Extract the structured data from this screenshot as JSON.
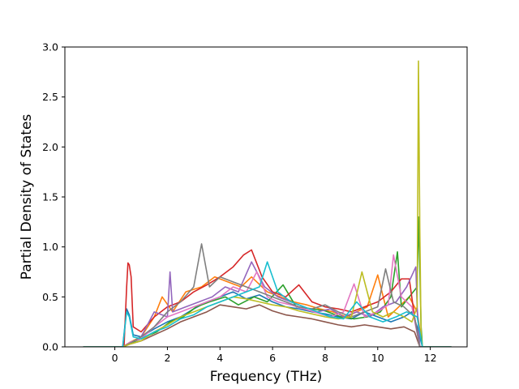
{
  "chart_data": {
    "type": "line",
    "title": "",
    "xlabel": "Frequency (THz)",
    "ylabel": "Partial Density of States",
    "xlim": [
      -1.9,
      13.4
    ],
    "ylim": [
      0.0,
      3.0
    ],
    "xticks": [
      0,
      2,
      4,
      6,
      8,
      10,
      12
    ],
    "yticks": [
      0.0,
      0.5,
      1.0,
      1.5,
      2.0,
      2.5,
      3.0
    ],
    "xtick_labels": [
      "0",
      "2",
      "4",
      "6",
      "8",
      "10",
      "12"
    ],
    "ytick_labels": [
      "0.0",
      "0.5",
      "1.0",
      "1.5",
      "2.0",
      "2.5",
      "3.0"
    ],
    "grid": false,
    "legend": "none",
    "colors": [
      "#1f77b4",
      "#ff7f0e",
      "#2ca02c",
      "#d62728",
      "#9467bd",
      "#8c564b",
      "#e377c2",
      "#7f7f7f",
      "#bcbd22",
      "#17becf"
    ],
    "series": [
      {
        "color": "#1f77b4",
        "x": [
          -1.2,
          0.3,
          0.45,
          0.55,
          0.7,
          1.0,
          1.5,
          2.0,
          2.5,
          3.0,
          3.5,
          4.0,
          4.5,
          5.0,
          5.5,
          6.0,
          6.5,
          7.0,
          7.5,
          8.0,
          8.5,
          9.0,
          9.5,
          10.0,
          10.5,
          11.0,
          11.3,
          11.5,
          11.6,
          11.7,
          12.8
        ],
        "y": [
          0.0,
          0.0,
          0.38,
          0.32,
          0.12,
          0.1,
          0.18,
          0.25,
          0.3,
          0.38,
          0.45,
          0.5,
          0.55,
          0.48,
          0.52,
          0.45,
          0.4,
          0.38,
          0.35,
          0.33,
          0.3,
          0.28,
          0.35,
          0.3,
          0.25,
          0.3,
          0.35,
          0.2,
          0.1,
          0.0,
          0.0
        ]
      },
      {
        "color": "#ff7f0e",
        "x": [
          -1.2,
          0.3,
          0.6,
          1.0,
          1.5,
          1.8,
          2.2,
          2.7,
          3.3,
          3.8,
          4.3,
          4.8,
          5.2,
          5.8,
          6.3,
          6.8,
          7.3,
          7.8,
          8.3,
          8.8,
          9.2,
          9.6,
          10.0,
          10.4,
          10.8,
          11.2,
          11.5,
          11.7,
          12.8
        ],
        "y": [
          0.0,
          0.0,
          0.05,
          0.1,
          0.3,
          0.5,
          0.35,
          0.55,
          0.6,
          0.7,
          0.65,
          0.6,
          0.7,
          0.55,
          0.5,
          0.45,
          0.42,
          0.38,
          0.35,
          0.3,
          0.35,
          0.4,
          0.72,
          0.3,
          0.4,
          0.5,
          0.35,
          0.0,
          0.0
        ]
      },
      {
        "color": "#2ca02c",
        "x": [
          -1.2,
          0.3,
          0.6,
          1.0,
          1.6,
          2.1,
          2.6,
          3.1,
          3.6,
          4.2,
          4.7,
          5.3,
          5.8,
          6.4,
          6.9,
          7.5,
          8.0,
          8.6,
          9.1,
          9.6,
          10.1,
          10.5,
          10.75,
          10.9,
          11.2,
          11.5,
          11.55,
          11.6,
          11.65,
          11.7,
          12.8
        ],
        "y": [
          0.0,
          0.0,
          0.04,
          0.08,
          0.15,
          0.25,
          0.3,
          0.4,
          0.45,
          0.5,
          0.42,
          0.5,
          0.45,
          0.62,
          0.4,
          0.38,
          0.36,
          0.3,
          0.28,
          0.3,
          0.35,
          0.5,
          0.95,
          0.4,
          0.5,
          0.6,
          1.3,
          0.8,
          0.2,
          0.0,
          0.0
        ]
      },
      {
        "color": "#d62728",
        "x": [
          -1.2,
          0.35,
          0.45,
          0.5,
          0.55,
          0.62,
          0.7,
          1.0,
          1.5,
          2.0,
          2.5,
          3.0,
          3.5,
          4.0,
          4.5,
          4.9,
          5.2,
          5.6,
          6.0,
          6.5,
          7.0,
          7.5,
          8.0,
          8.5,
          9.0,
          9.5,
          10.0,
          10.5,
          10.9,
          11.2,
          11.4,
          11.6,
          12.8
        ],
        "y": [
          0.0,
          0.0,
          0.6,
          0.84,
          0.82,
          0.7,
          0.2,
          0.15,
          0.3,
          0.4,
          0.45,
          0.55,
          0.62,
          0.7,
          0.8,
          0.92,
          0.97,
          0.7,
          0.55,
          0.5,
          0.62,
          0.45,
          0.4,
          0.38,
          0.35,
          0.4,
          0.45,
          0.55,
          0.68,
          0.68,
          0.3,
          0.0,
          0.0
        ]
      },
      {
        "color": "#9467bd",
        "x": [
          -1.2,
          0.3,
          0.6,
          1.0,
          1.5,
          2.0,
          2.1,
          2.2,
          2.7,
          3.2,
          3.7,
          4.2,
          4.7,
          5.2,
          5.7,
          6.2,
          6.7,
          7.2,
          7.7,
          8.2,
          8.7,
          9.2,
          9.7,
          10.2,
          10.7,
          11.1,
          11.45,
          11.5,
          11.6,
          12.8
        ],
        "y": [
          0.0,
          0.0,
          0.04,
          0.1,
          0.35,
          0.3,
          0.75,
          0.35,
          0.4,
          0.45,
          0.5,
          0.6,
          0.55,
          0.85,
          0.6,
          0.5,
          0.45,
          0.4,
          0.35,
          0.38,
          0.3,
          0.35,
          0.3,
          0.4,
          0.45,
          0.6,
          0.8,
          0.4,
          0.0,
          0.0
        ]
      },
      {
        "color": "#8c564b",
        "x": [
          -1.2,
          0.3,
          0.6,
          1.0,
          1.5,
          2.0,
          2.5,
          3.0,
          3.5,
          4.0,
          4.5,
          5.0,
          5.5,
          6.0,
          6.5,
          7.0,
          7.5,
          8.0,
          8.5,
          9.0,
          9.5,
          10.0,
          10.5,
          11.0,
          11.4,
          11.6,
          12.8
        ],
        "y": [
          0.0,
          0.0,
          0.03,
          0.06,
          0.12,
          0.18,
          0.25,
          0.3,
          0.35,
          0.42,
          0.4,
          0.38,
          0.42,
          0.36,
          0.32,
          0.3,
          0.28,
          0.25,
          0.22,
          0.2,
          0.22,
          0.2,
          0.18,
          0.2,
          0.15,
          0.0,
          0.0
        ]
      },
      {
        "color": "#e377c2",
        "x": [
          -1.2,
          0.3,
          0.6,
          1.0,
          1.5,
          2.0,
          2.5,
          3.0,
          3.5,
          4.0,
          4.5,
          5.0,
          5.4,
          5.8,
          6.2,
          6.7,
          7.2,
          7.7,
          8.2,
          8.7,
          9.1,
          9.5,
          10.0,
          10.4,
          10.6,
          10.9,
          11.3,
          11.6,
          12.8
        ],
        "y": [
          0.0,
          0.0,
          0.05,
          0.08,
          0.2,
          0.3,
          0.35,
          0.4,
          0.45,
          0.5,
          0.6,
          0.55,
          0.75,
          0.5,
          0.45,
          0.42,
          0.38,
          0.34,
          0.3,
          0.35,
          0.63,
          0.3,
          0.35,
          0.42,
          0.92,
          0.5,
          0.4,
          0.0,
          0.0
        ]
      },
      {
        "color": "#7f7f7f",
        "x": [
          -1.2,
          0.3,
          0.6,
          1.0,
          1.5,
          2.0,
          2.5,
          3.0,
          3.3,
          3.6,
          4.0,
          4.5,
          5.0,
          5.5,
          6.0,
          6.5,
          7.0,
          7.5,
          8.0,
          8.5,
          9.0,
          9.5,
          10.0,
          10.3,
          10.6,
          11.0,
          11.4,
          11.6,
          12.8
        ],
        "y": [
          0.0,
          0.0,
          0.04,
          0.1,
          0.2,
          0.35,
          0.45,
          0.6,
          1.03,
          0.6,
          0.7,
          0.65,
          0.6,
          0.55,
          0.5,
          0.45,
          0.4,
          0.38,
          0.42,
          0.35,
          0.3,
          0.35,
          0.4,
          0.78,
          0.45,
          0.4,
          0.3,
          0.0,
          0.0
        ]
      },
      {
        "color": "#bcbd22",
        "x": [
          -1.2,
          0.3,
          0.6,
          1.0,
          1.5,
          2.0,
          2.5,
          3.0,
          3.5,
          4.0,
          4.5,
          5.0,
          5.5,
          6.0,
          6.5,
          7.0,
          7.5,
          8.0,
          8.5,
          9.0,
          9.4,
          9.8,
          10.2,
          10.6,
          11.0,
          11.3,
          11.5,
          11.55,
          11.6,
          11.65,
          11.7,
          12.8
        ],
        "y": [
          0.0,
          0.0,
          0.03,
          0.06,
          0.15,
          0.22,
          0.3,
          0.35,
          0.4,
          0.45,
          0.5,
          0.48,
          0.45,
          0.42,
          0.4,
          0.36,
          0.33,
          0.3,
          0.28,
          0.3,
          0.75,
          0.35,
          0.3,
          0.35,
          0.3,
          0.25,
          0.4,
          2.86,
          1.2,
          0.1,
          0.0,
          0.0
        ]
      },
      {
        "color": "#17becf",
        "x": [
          -1.2,
          0.3,
          0.45,
          0.55,
          0.7,
          1.0,
          1.5,
          2.0,
          2.5,
          3.0,
          3.5,
          4.0,
          4.5,
          5.0,
          5.5,
          5.8,
          6.2,
          6.7,
          7.2,
          7.7,
          8.2,
          8.7,
          9.2,
          9.7,
          10.2,
          10.7,
          11.1,
          11.5,
          11.7,
          12.8
        ],
        "y": [
          0.0,
          0.0,
          0.35,
          0.3,
          0.1,
          0.08,
          0.15,
          0.2,
          0.28,
          0.32,
          0.4,
          0.45,
          0.5,
          0.55,
          0.6,
          0.85,
          0.55,
          0.45,
          0.4,
          0.35,
          0.3,
          0.28,
          0.45,
          0.3,
          0.25,
          0.3,
          0.35,
          0.3,
          0.0,
          0.0
        ]
      }
    ]
  }
}
